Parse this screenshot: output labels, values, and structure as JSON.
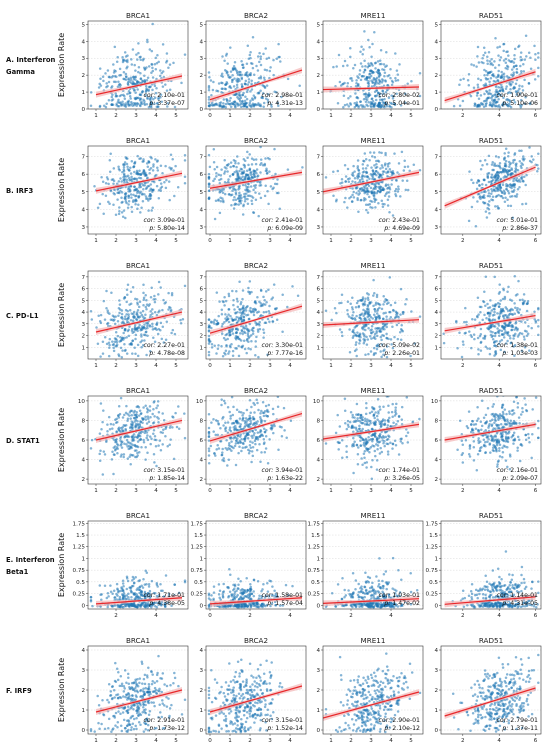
{
  "figure": {
    "ylabel": "Expression Rate",
    "columns": [
      "BRCA1",
      "BRCA2",
      "MRE11",
      "RAD51"
    ],
    "row_labels": [
      [
        "A. Interferon",
        "Gamma"
      ],
      [
        "B. IRF3"
      ],
      [
        "C. PD-L1"
      ],
      [
        "D. STAT1"
      ],
      [
        "E. Interferon",
        "Beta1"
      ],
      [
        "F. IRF9"
      ]
    ],
    "colors": {
      "points": "#1f77b4",
      "fit_line": "#e8282b",
      "ci_band": "#f4b6b6"
    }
  },
  "chart_data": [
    {
      "type": "scatter",
      "row": "A. Interferon Gamma",
      "title": "BRCA1",
      "cor": "2.10e-01",
      "p": "3.37e-07",
      "xlim": [
        0.6,
        5.6
      ],
      "xticks": [
        1,
        2,
        3,
        4,
        5
      ],
      "ylim": [
        0,
        5.2
      ],
      "yticks": [
        0,
        1,
        2,
        3,
        4,
        5
      ],
      "fit": {
        "x": [
          1,
          5.3
        ],
        "y": [
          0.85,
          1.95
        ]
      },
      "cloud": {
        "cx": 3,
        "sx": 0.9,
        "cy": 1.3,
        "sy": 1.1
      }
    },
    {
      "type": "scatter",
      "row": "A. Interferon Gamma",
      "title": "BRCA2",
      "cor": "2.98e-01",
      "p": "4.31e-13",
      "xlim": [
        -0.2,
        4.8
      ],
      "xticks": [
        0,
        1,
        2,
        3,
        4
      ],
      "ylim": [
        0,
        5.2
      ],
      "yticks": [
        0,
        1,
        2,
        3,
        4,
        5
      ],
      "fit": {
        "x": [
          0,
          4.6
        ],
        "y": [
          0.55,
          2.3
        ]
      },
      "cloud": {
        "cx": 1.6,
        "sx": 0.9,
        "cy": 1.3,
        "sy": 1.1
      }
    },
    {
      "type": "scatter",
      "row": "A. Interferon Gamma",
      "title": "MRE11",
      "cor": "2.80e-02",
      "p": "5.04e-01",
      "xlim": [
        0.6,
        5.6
      ],
      "xticks": [
        1,
        2,
        3,
        4,
        5
      ],
      "ylim": [
        0,
        5.2
      ],
      "yticks": [
        0,
        1,
        2,
        3,
        4,
        5
      ],
      "fit": {
        "x": [
          0.6,
          5.4
        ],
        "y": [
          1.15,
          1.3
        ]
      },
      "cloud": {
        "cx": 3.1,
        "sx": 0.8,
        "cy": 1.3,
        "sy": 1.1
      }
    },
    {
      "type": "scatter",
      "row": "A. Interferon Gamma",
      "title": "RAD51",
      "cor": "1.90e-01",
      "p": "5.10e-06",
      "xlim": [
        0.8,
        6.3
      ],
      "xticks": [
        2,
        4,
        6
      ],
      "ylim": [
        0,
        5.2
      ],
      "yticks": [
        0,
        1,
        2,
        3,
        4,
        5
      ],
      "fit": {
        "x": [
          1,
          6
        ],
        "y": [
          0.5,
          2.2
        ]
      },
      "cloud": {
        "cx": 4,
        "sx": 0.9,
        "cy": 1.3,
        "sy": 1.1
      }
    },
    {
      "type": "scatter",
      "row": "B. IRF3",
      "title": "BRCA1",
      "cor": "3.09e-01",
      "p": "5.80e-14",
      "xlim": [
        0.6,
        5.6
      ],
      "xticks": [
        1,
        2,
        3,
        4,
        5
      ],
      "ylim": [
        2.6,
        7.6
      ],
      "yticks": [
        3,
        4,
        5,
        6,
        7
      ],
      "fit": {
        "x": [
          1,
          5.3
        ],
        "y": [
          5.05,
          6.05
        ]
      },
      "cloud": {
        "cx": 3,
        "sx": 0.9,
        "cy": 5.5,
        "sy": 0.75
      }
    },
    {
      "type": "scatter",
      "row": "B. IRF3",
      "title": "BRCA2",
      "cor": "2.41e-01",
      "p": "6.09e-09",
      "xlim": [
        -0.2,
        4.8
      ],
      "xticks": [
        0,
        1,
        2,
        3,
        4
      ],
      "ylim": [
        2.6,
        7.6
      ],
      "yticks": [
        3,
        4,
        5,
        6,
        7
      ],
      "fit": {
        "x": [
          0,
          4.6
        ],
        "y": [
          5.2,
          6.1
        ]
      },
      "cloud": {
        "cx": 1.6,
        "sx": 0.9,
        "cy": 5.6,
        "sy": 0.75
      }
    },
    {
      "type": "scatter",
      "row": "B. IRF3",
      "title": "MRE11",
      "cor": "2.43e-01",
      "p": "4.69e-09",
      "xlim": [
        0.6,
        5.6
      ],
      "xticks": [
        1,
        2,
        3,
        4,
        5
      ],
      "ylim": [
        2.6,
        7.6
      ],
      "yticks": [
        3,
        4,
        5,
        6,
        7
      ],
      "fit": {
        "x": [
          0.6,
          5.4
        ],
        "y": [
          5.0,
          6.1
        ]
      },
      "cloud": {
        "cx": 3.1,
        "sx": 0.8,
        "cy": 5.5,
        "sy": 0.75
      }
    },
    {
      "type": "scatter",
      "row": "B. IRF3",
      "title": "RAD51",
      "cor": "5.01e-01",
      "p": "2.86e-37",
      "xlim": [
        0.8,
        6.3
      ],
      "xticks": [
        2,
        4,
        6
      ],
      "ylim": [
        2.6,
        7.6
      ],
      "yticks": [
        3,
        4,
        5,
        6,
        7
      ],
      "fit": {
        "x": [
          1,
          6
        ],
        "y": [
          4.2,
          6.4
        ]
      },
      "cloud": {
        "cx": 4.2,
        "sx": 0.8,
        "cy": 5.6,
        "sy": 0.7
      }
    },
    {
      "type": "scatter",
      "row": "C. PD-L1",
      "title": "BRCA1",
      "cor": "2.27e-01",
      "p": "4.78e-08",
      "xlim": [
        0.6,
        5.6
      ],
      "xticks": [
        1,
        2,
        3,
        4,
        5
      ],
      "ylim": [
        0,
        7.5
      ],
      "yticks": [
        1,
        2,
        3,
        4,
        5,
        6,
        7
      ],
      "fit": {
        "x": [
          1,
          5.3
        ],
        "y": [
          2.3,
          4.0
        ]
      },
      "cloud": {
        "cx": 3,
        "sx": 0.9,
        "cy": 3.0,
        "sy": 1.3
      }
    },
    {
      "type": "scatter",
      "row": "C. PD-L1",
      "title": "BRCA2",
      "cor": "3.30e-01",
      "p": "7.77e-16",
      "xlim": [
        -0.2,
        4.8
      ],
      "xticks": [
        0,
        1,
        2,
        3,
        4
      ],
      "ylim": [
        0,
        7.5
      ],
      "yticks": [
        1,
        2,
        3,
        4,
        5,
        6,
        7
      ],
      "fit": {
        "x": [
          0,
          4.6
        ],
        "y": [
          2.2,
          4.5
        ]
      },
      "cloud": {
        "cx": 1.6,
        "sx": 0.9,
        "cy": 3.0,
        "sy": 1.3
      }
    },
    {
      "type": "scatter",
      "row": "C. PD-L1",
      "title": "MRE11",
      "cor": "5.09e-02",
      "p": "2.26e-01",
      "xlim": [
        0.6,
        5.6
      ],
      "xticks": [
        1,
        2,
        3,
        4,
        5
      ],
      "ylim": [
        0,
        7.5
      ],
      "yticks": [
        1,
        2,
        3,
        4,
        5,
        6,
        7
      ],
      "fit": {
        "x": [
          0.6,
          5.4
        ],
        "y": [
          2.9,
          3.35
        ]
      },
      "cloud": {
        "cx": 3.1,
        "sx": 0.8,
        "cy": 3.0,
        "sy": 1.3
      }
    },
    {
      "type": "scatter",
      "row": "C. PD-L1",
      "title": "RAD51",
      "cor": "1.38e-01",
      "p": "1.03e-03",
      "xlim": [
        0.8,
        6.3
      ],
      "xticks": [
        2,
        4,
        6
      ],
      "ylim": [
        0,
        7.5
      ],
      "yticks": [
        1,
        2,
        3,
        4,
        5,
        6,
        7
      ],
      "fit": {
        "x": [
          1,
          6
        ],
        "y": [
          2.4,
          3.7
        ]
      },
      "cloud": {
        "cx": 4,
        "sx": 0.9,
        "cy": 3.0,
        "sy": 1.3
      }
    },
    {
      "type": "scatter",
      "row": "D. STAT1",
      "title": "BRCA1",
      "cor": "3.15e-01",
      "p": "1.85e-14",
      "xlim": [
        0.6,
        5.6
      ],
      "xticks": [
        1,
        2,
        3,
        4,
        5
      ],
      "ylim": [
        1.5,
        10.5
      ],
      "yticks": [
        2,
        4,
        6,
        8,
        10
      ],
      "fit": {
        "x": [
          1,
          5.3
        ],
        "y": [
          6.0,
          8.0
        ]
      },
      "cloud": {
        "cx": 3,
        "sx": 0.9,
        "cy": 7.0,
        "sy": 1.4
      }
    },
    {
      "type": "scatter",
      "row": "D. STAT1",
      "title": "BRCA2",
      "cor": "3.94e-01",
      "p": "1.63e-22",
      "xlim": [
        -0.2,
        4.8
      ],
      "xticks": [
        0,
        1,
        2,
        3,
        4
      ],
      "ylim": [
        1.5,
        10.5
      ],
      "yticks": [
        2,
        4,
        6,
        8,
        10
      ],
      "fit": {
        "x": [
          0,
          4.6
        ],
        "y": [
          5.9,
          8.7
        ]
      },
      "cloud": {
        "cx": 1.6,
        "sx": 0.9,
        "cy": 7.0,
        "sy": 1.4
      }
    },
    {
      "type": "scatter",
      "row": "D. STAT1",
      "title": "MRE11",
      "cor": "1.74e-01",
      "p": "3.26e-05",
      "xlim": [
        0.6,
        5.6
      ],
      "xticks": [
        1,
        2,
        3,
        4,
        5
      ],
      "ylim": [
        1.5,
        10.5
      ],
      "yticks": [
        2,
        4,
        6,
        8,
        10
      ],
      "fit": {
        "x": [
          0.6,
          5.4
        ],
        "y": [
          6.1,
          7.6
        ]
      },
      "cloud": {
        "cx": 3.1,
        "sx": 0.8,
        "cy": 7.0,
        "sy": 1.4
      }
    },
    {
      "type": "scatter",
      "row": "D. STAT1",
      "title": "RAD51",
      "cor": "2.16e-01",
      "p": "2.09e-07",
      "xlim": [
        0.8,
        6.3
      ],
      "xticks": [
        2,
        4,
        6
      ],
      "ylim": [
        1.5,
        10.5
      ],
      "yticks": [
        2,
        4,
        6,
        8,
        10
      ],
      "fit": {
        "x": [
          1,
          6
        ],
        "y": [
          6.0,
          7.6
        ]
      },
      "cloud": {
        "cx": 4,
        "sx": 0.9,
        "cy": 7.0,
        "sy": 1.4
      }
    },
    {
      "type": "scatter",
      "row": "E. Interferon Beta1",
      "title": "BRCA1",
      "cor": "1.71e-01",
      "p": "4.38e-05",
      "xlim": [
        0.6,
        5.6
      ],
      "xticks": [
        2,
        4
      ],
      "ylim": [
        -0.08,
        1.8
      ],
      "yticks": [
        0,
        0.25,
        0.5,
        0.75,
        1,
        1.25,
        1.5,
        1.75
      ],
      "fit": {
        "x": [
          1,
          5.3
        ],
        "y": [
          0.03,
          0.16
        ]
      },
      "cloud": {
        "cx": 3,
        "sx": 0.9,
        "cy": 0.05,
        "sy": 0.25
      }
    },
    {
      "type": "scatter",
      "row": "E. Interferon Beta1",
      "title": "BRCA2",
      "cor": "1.58e-01",
      "p": "1.57e-04",
      "xlim": [
        -0.2,
        4.8
      ],
      "xticks": [
        0,
        2,
        4
      ],
      "ylim": [
        -0.08,
        1.8
      ],
      "yticks": [
        0,
        0.25,
        0.5,
        0.75,
        1,
        1.25,
        1.5,
        1.75
      ],
      "fit": {
        "x": [
          0,
          4.6
        ],
        "y": [
          0.03,
          0.16
        ]
      },
      "cloud": {
        "cx": 1.6,
        "sx": 0.9,
        "cy": 0.05,
        "sy": 0.25
      }
    },
    {
      "type": "scatter",
      "row": "E. Interferon Beta1",
      "title": "MRE11",
      "cor": "1.03e-01",
      "p": "1.47e-02",
      "xlim": [
        0.6,
        5.6
      ],
      "xticks": [
        2,
        4
      ],
      "ylim": [
        -0.08,
        1.8
      ],
      "yticks": [
        0,
        0.25,
        0.5,
        0.75,
        1,
        1.25,
        1.5,
        1.75
      ],
      "fit": {
        "x": [
          0.6,
          5.4
        ],
        "y": [
          0.04,
          0.14
        ]
      },
      "cloud": {
        "cx": 3.1,
        "sx": 0.8,
        "cy": 0.05,
        "sy": 0.25
      }
    },
    {
      "type": "scatter",
      "row": "E. Interferon Beta1",
      "title": "RAD51",
      "cor": "1.14e-01",
      "p": "4.31e-05",
      "xlim": [
        0.8,
        6.3
      ],
      "xticks": [
        2,
        4,
        6
      ],
      "ylim": [
        -0.08,
        1.8
      ],
      "yticks": [
        0,
        0.25,
        0.5,
        0.75,
        1,
        1.25,
        1.5,
        1.75
      ],
      "fit": {
        "x": [
          1,
          6
        ],
        "y": [
          0.02,
          0.18
        ]
      },
      "cloud": {
        "cx": 4,
        "sx": 0.9,
        "cy": 0.05,
        "sy": 0.25
      }
    },
    {
      "type": "scatter",
      "row": "F. IRF9",
      "title": "BRCA1",
      "cor": "2.91e-01",
      "p": "1.73e-12",
      "xlim": [
        0.6,
        5.6
      ],
      "xticks": [
        1,
        2,
        3,
        4,
        5
      ],
      "ylim": [
        -0.2,
        4.2
      ],
      "yticks": [
        0,
        1,
        2,
        3,
        4
      ],
      "fit": {
        "x": [
          1,
          5.3
        ],
        "y": [
          0.9,
          2.0
        ]
      },
      "cloud": {
        "cx": 3,
        "sx": 0.9,
        "cy": 1.5,
        "sy": 0.85
      }
    },
    {
      "type": "scatter",
      "row": "F. IRF9",
      "title": "BRCA2",
      "cor": "3.15e-01",
      "p": "1.52e-14",
      "xlim": [
        -0.2,
        4.8
      ],
      "xticks": [
        0,
        1,
        2,
        3,
        4
      ],
      "ylim": [
        -0.2,
        4.2
      ],
      "yticks": [
        0,
        1,
        2,
        3,
        4
      ],
      "fit": {
        "x": [
          0,
          4.6
        ],
        "y": [
          0.9,
          2.2
        ]
      },
      "cloud": {
        "cx": 1.6,
        "sx": 0.9,
        "cy": 1.5,
        "sy": 0.85
      }
    },
    {
      "type": "scatter",
      "row": "F. IRF9",
      "title": "MRE11",
      "cor": "2.90e-01",
      "p": "2.10e-12",
      "xlim": [
        0.6,
        5.6
      ],
      "xticks": [
        1,
        2,
        3,
        4,
        5
      ],
      "ylim": [
        -0.2,
        4.2
      ],
      "yticks": [
        0,
        1,
        2,
        3,
        4
      ],
      "fit": {
        "x": [
          0.6,
          5.4
        ],
        "y": [
          0.6,
          1.9
        ]
      },
      "cloud": {
        "cx": 3.1,
        "sx": 0.8,
        "cy": 1.5,
        "sy": 0.85
      }
    },
    {
      "type": "scatter",
      "row": "F. IRF9",
      "title": "RAD51",
      "cor": "2.79e-01",
      "p": "1.37e-11",
      "xlim": [
        0.8,
        6.3
      ],
      "xticks": [
        2,
        4,
        6
      ],
      "ylim": [
        -0.2,
        4.2
      ],
      "yticks": [
        0,
        1,
        2,
        3,
        4
      ],
      "fit": {
        "x": [
          1,
          6
        ],
        "y": [
          0.7,
          2.1
        ]
      },
      "cloud": {
        "cx": 4,
        "sx": 0.9,
        "cy": 1.5,
        "sy": 0.85
      }
    }
  ]
}
